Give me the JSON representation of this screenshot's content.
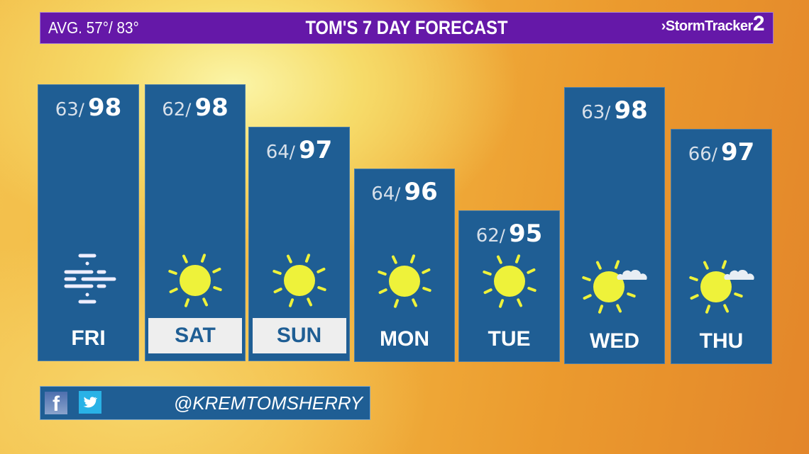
{
  "header": {
    "avg": "AVG.  57°/ 83°",
    "title": "TOM'S 7 DAY FORECAST",
    "brand_prefix": "›Storm",
    "brand_main": "Tracker",
    "brand_num": "2"
  },
  "days": [
    {
      "day": "FRI",
      "low": "63",
      "high": "98",
      "icon": "fog-icon",
      "highlighted": false
    },
    {
      "day": "SAT",
      "low": "62",
      "high": "98",
      "icon": "sun-icon",
      "highlighted": true
    },
    {
      "day": "SUN",
      "low": "64",
      "high": "97",
      "icon": "sun-icon",
      "highlighted": true
    },
    {
      "day": "MON",
      "low": "64",
      "high": "96",
      "icon": "sun-icon",
      "highlighted": false
    },
    {
      "day": "TUE",
      "low": "62",
      "high": "95",
      "icon": "sun-icon",
      "highlighted": false
    },
    {
      "day": "WED",
      "low": "63",
      "high": "98",
      "icon": "sun-cloud-icon",
      "highlighted": false
    },
    {
      "day": "THU",
      "low": "66",
      "high": "97",
      "icon": "sun-cloud-icon",
      "highlighted": false
    }
  ],
  "separator": "/",
  "social": {
    "handle": "@KREMTOMSHERRY",
    "facebook": "f"
  },
  "colors": {
    "header": "#6518a8",
    "panel": "#1f5e94",
    "sun": "#eef23a"
  }
}
